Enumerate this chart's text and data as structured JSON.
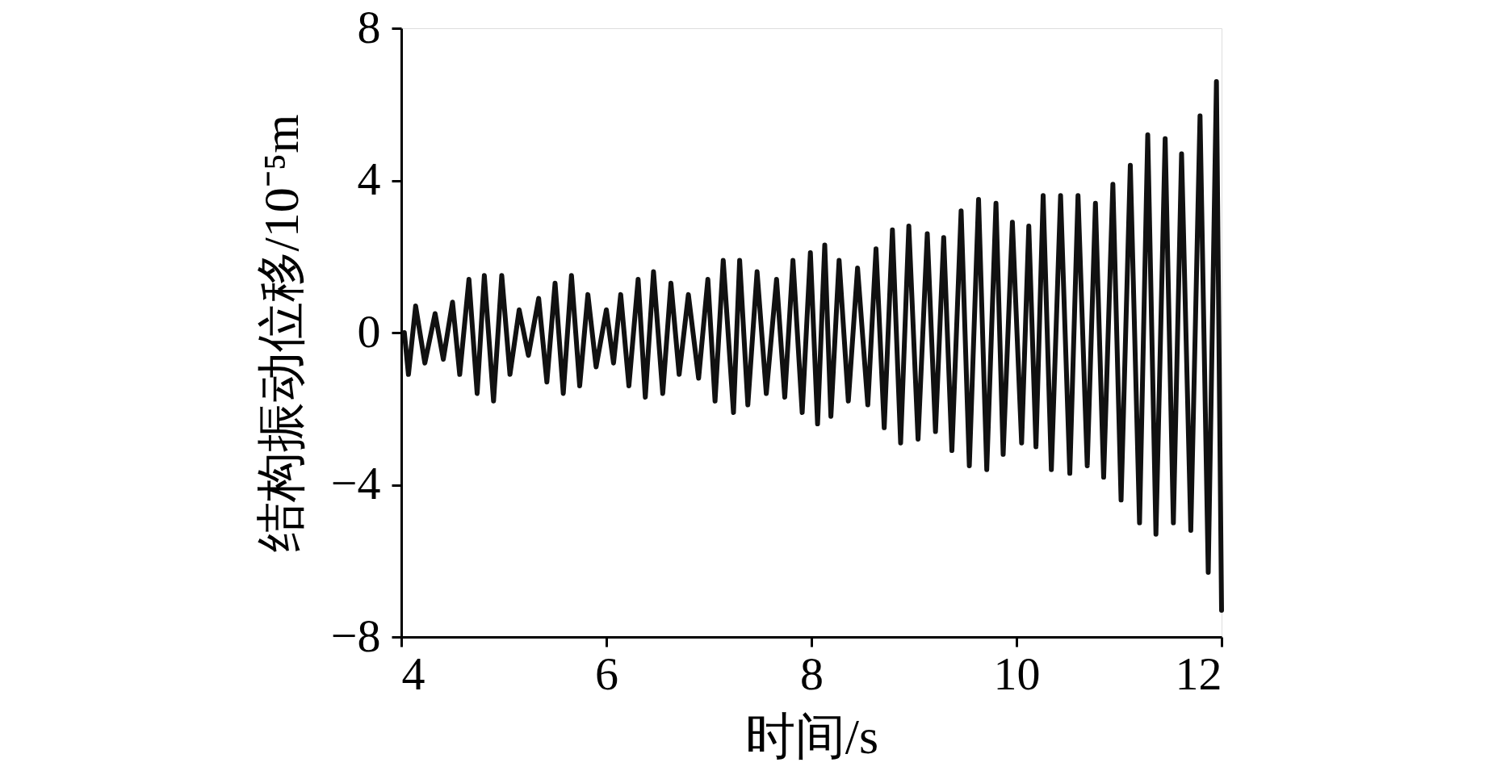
{
  "chart_data": {
    "type": "line",
    "xlabel": "时间/s",
    "ylabel": "结构振动位移/10⁻⁵m",
    "x": [
      4.03,
      4.07,
      4.14,
      4.23,
      4.33,
      4.41,
      4.5,
      4.57,
      4.66,
      4.74,
      4.81,
      4.9,
      4.98,
      5.06,
      5.15,
      5.24,
      5.34,
      5.42,
      5.5,
      5.58,
      5.66,
      5.74,
      5.82,
      5.9,
      6.0,
      6.07,
      6.14,
      6.22,
      6.31,
      6.38,
      6.46,
      6.55,
      6.63,
      6.71,
      6.8,
      6.9,
      6.99,
      7.06,
      7.14,
      7.24,
      7.3,
      7.38,
      7.47,
      7.56,
      7.66,
      7.74,
      7.82,
      7.91,
      7.99,
      8.06,
      8.13,
      8.19,
      8.27,
      8.36,
      8.45,
      8.55,
      8.63,
      8.71,
      8.79,
      8.87,
      8.95,
      9.04,
      9.13,
      9.21,
      9.29,
      9.37,
      9.46,
      9.54,
      9.63,
      9.71,
      9.8,
      9.87,
      9.96,
      10.05,
      10.12,
      10.19,
      10.26,
      10.34,
      10.43,
      10.52,
      10.6,
      10.69,
      10.77,
      10.85,
      10.94,
      11.02,
      11.11,
      11.2,
      11.28,
      11.36,
      11.45,
      11.53,
      11.61,
      11.7,
      11.79,
      11.87,
      11.95,
      12.0
    ],
    "series": [
      {
        "color": "#111111",
        "values": [
          0.0,
          -1.1,
          0.7,
          -0.8,
          0.5,
          -0.7,
          0.8,
          -1.1,
          1.4,
          -1.6,
          1.5,
          -1.8,
          1.5,
          -1.1,
          0.6,
          -0.6,
          0.9,
          -1.3,
          1.3,
          -1.6,
          1.5,
          -1.4,
          1.0,
          -0.9,
          0.6,
          -0.8,
          1.0,
          -1.4,
          1.4,
          -1.7,
          1.6,
          -1.6,
          1.3,
          -1.1,
          1.0,
          -1.2,
          1.4,
          -1.8,
          1.9,
          -2.1,
          1.9,
          -1.9,
          1.6,
          -1.6,
          1.4,
          -1.7,
          1.9,
          -2.1,
          2.1,
          -2.4,
          2.3,
          -2.2,
          1.9,
          -1.8,
          1.7,
          -1.9,
          2.2,
          -2.5,
          2.7,
          -2.9,
          2.8,
          -2.8,
          2.6,
          -2.6,
          2.5,
          -3.1,
          3.2,
          -3.5,
          3.5,
          -3.6,
          3.4,
          -3.2,
          2.9,
          -2.9,
          2.8,
          -3.0,
          3.6,
          -3.6,
          3.6,
          -3.7,
          3.6,
          -3.5,
          3.4,
          -3.8,
          3.9,
          -4.4,
          4.4,
          -5.0,
          5.2,
          -5.3,
          5.1,
          -5.0,
          4.7,
          -5.2,
          5.7,
          -6.3,
          6.6,
          -7.3
        ]
      }
    ],
    "xlim": [
      4,
      12
    ],
    "ylim": [
      -8,
      8
    ],
    "xticks": [
      4,
      6,
      8,
      10,
      12
    ],
    "yticks": [
      -8,
      -4,
      0,
      4,
      8
    ],
    "grid": false,
    "line_style": "solid"
  }
}
